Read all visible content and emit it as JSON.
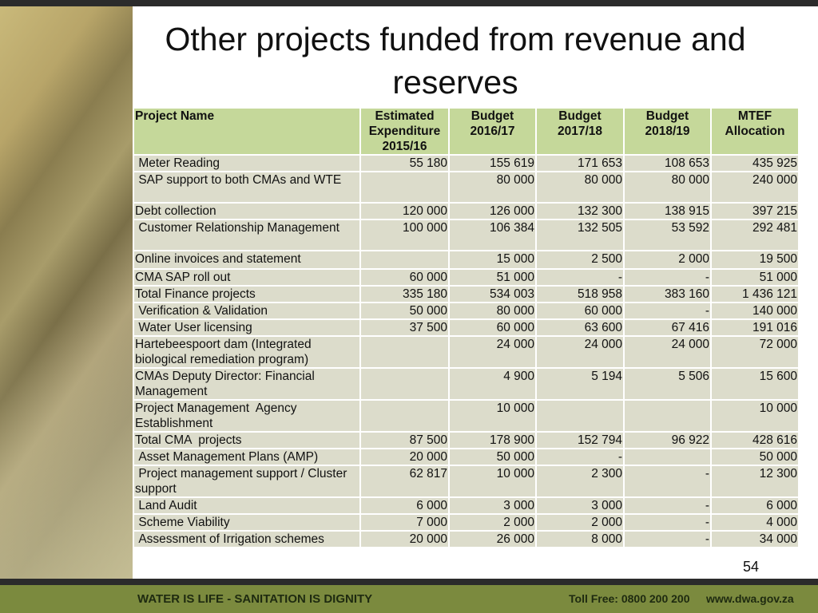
{
  "title": "Other projects funded from revenue and reserves",
  "table": {
    "header": [
      "Project  Name",
      "Estimated Expenditure 2015/16",
      "Budget 2016/17",
      "Budget 2017/18",
      "Budget 2018/19",
      "MTEF Allocation"
    ],
    "rows": [
      [
        " Meter Reading",
        "55 180",
        "155 619",
        "171 653",
        "108 653",
        "435 925"
      ],
      [
        " SAP support to both CMAs and WTE",
        null,
        "80 000",
        "80 000",
        "80 000",
        "240 000"
      ],
      [
        "Debt collection",
        "120 000",
        "126 000",
        "132 300",
        "138 915",
        "397 215"
      ],
      [
        " Customer Relationship Management",
        "100 000",
        "106 384",
        "132 505",
        "53 592",
        "292 481"
      ],
      [
        "Online invoices and statement",
        null,
        "15 000",
        "2 500",
        "2 000",
        "19 500"
      ],
      [
        "CMA SAP roll out",
        "60 000",
        "51 000",
        "-",
        "-",
        "51 000"
      ],
      [
        "Total Finance projects",
        "335 180",
        "534 003",
        "518 958",
        "383 160",
        "1 436 121"
      ],
      [
        " Verification & Validation",
        "50 000",
        "80 000",
        "60 000",
        "-",
        "140 000"
      ],
      [
        " Water User licensing",
        "37 500",
        "60 000",
        "63 600",
        "67 416",
        "191 016"
      ],
      [
        "Hartebeespoort dam (Integrated biological remediation program)",
        null,
        "24 000",
        "24 000",
        "24 000",
        "72 000"
      ],
      [
        "CMAs Deputy Director: Financial Management",
        null,
        "4 900",
        "5 194",
        "5 506",
        "15 600"
      ],
      [
        "Project Management  Agency Establishment",
        null,
        "10 000",
        null,
        null,
        "10 000"
      ],
      [
        "Total CMA  projects",
        "87 500",
        "178 900",
        "152 794",
        "96 922",
        "428 616"
      ],
      [
        " Asset Management Plans (AMP)",
        "20 000",
        "50 000",
        "-",
        null,
        "50 000"
      ],
      [
        " Project management support / Cluster support",
        "62 817",
        "10 000",
        "2 300",
        "-",
        "12 300"
      ],
      [
        " Land Audit",
        "6 000",
        "3 000",
        "3 000",
        "-",
        "6 000"
      ],
      [
        " Scheme Viability",
        "7 000",
        "2 000",
        "2 000",
        "-",
        "4 000"
      ],
      [
        " Assessment of Irrigation schemes",
        "20 000",
        "26 000",
        "8 000",
        "-",
        "34 000"
      ]
    ]
  },
  "page_number": "54",
  "footer": {
    "slogan": "WATER IS LIFE - SANITATION IS DIGNITY",
    "toll_free": "Toll Free: 0800 200 200",
    "website": "www.dwa.gov.za"
  }
}
